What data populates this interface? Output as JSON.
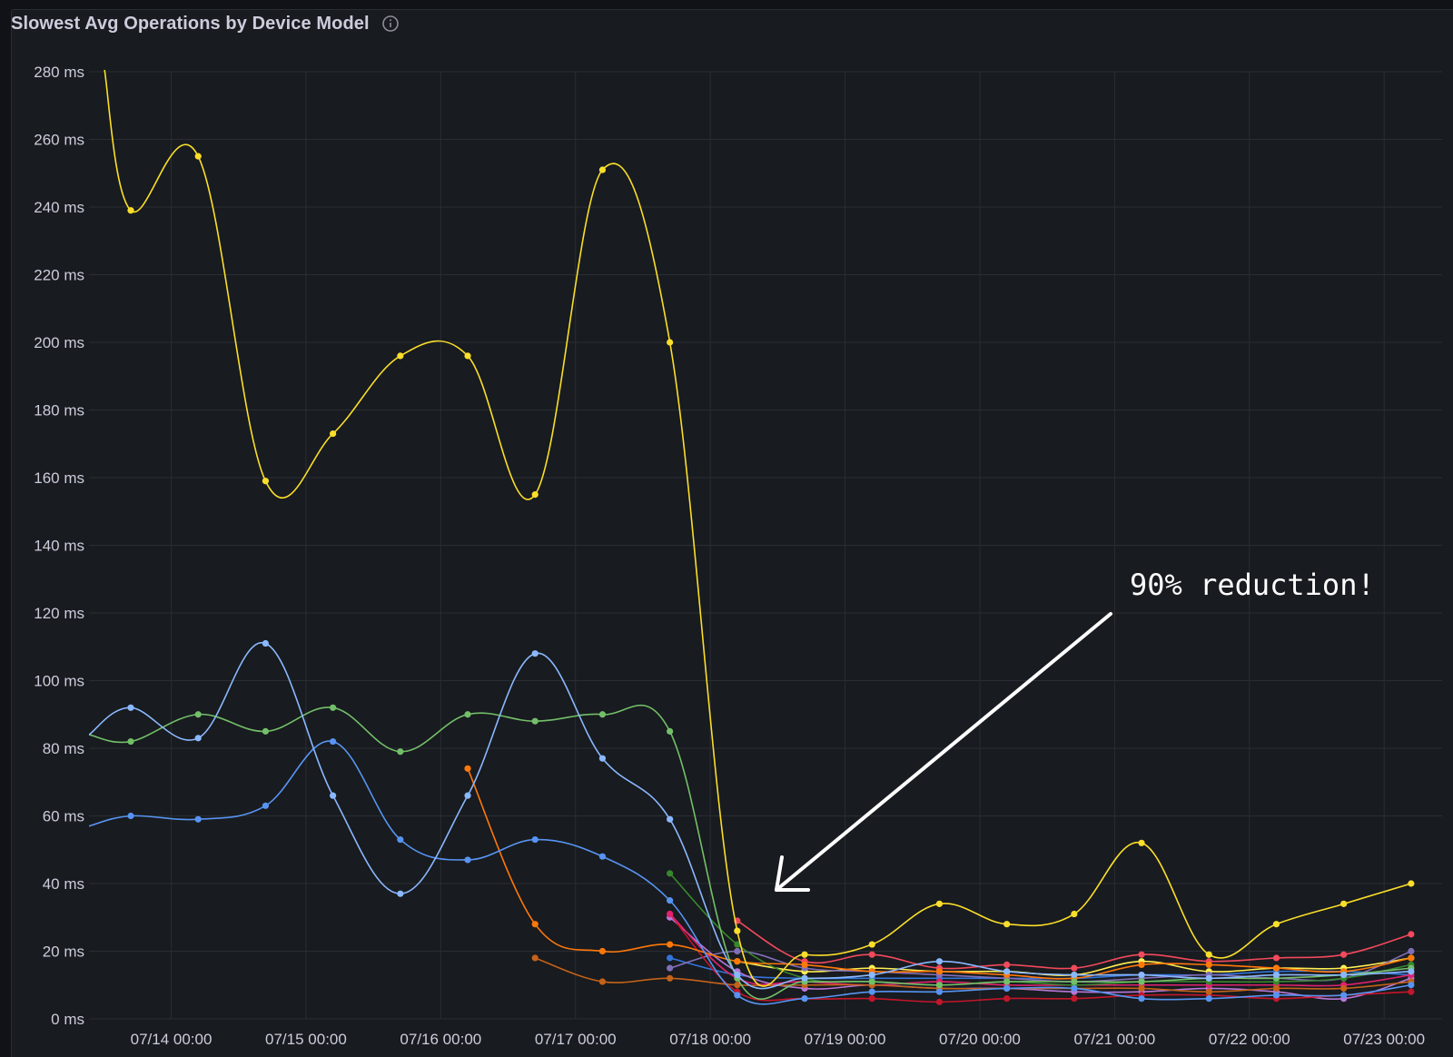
{
  "panel": {
    "title": "Slowest Avg Operations by Device Model",
    "info_icon": "info-circle-icon"
  },
  "annotation": {
    "text": "90% reduction!",
    "arrow": "arrow-pointing-down-left"
  },
  "chart_data": {
    "type": "line",
    "title": "Slowest Avg Operations by Device Model",
    "xlabel": "",
    "ylabel": "",
    "y_unit": "ms",
    "ylim": [
      0,
      280
    ],
    "y_ticks": [
      "0 ms",
      "20 ms",
      "40 ms",
      "60 ms",
      "80 ms",
      "100 ms",
      "120 ms",
      "140 ms",
      "160 ms",
      "180 ms",
      "200 ms",
      "220 ms",
      "240 ms",
      "260 ms",
      "280 ms"
    ],
    "x_tick_labels": [
      "07/14 00:00",
      "07/15 00:00",
      "07/16 00:00",
      "07/17 00:00",
      "07/18 00:00",
      "07/19 00:00",
      "07/20 00:00",
      "07/21 00:00",
      "07/22 00:00",
      "07/23 00:00"
    ],
    "x_unit": "days since 07/14 00:00",
    "xlim": [
      -0.61,
      9.43
    ],
    "grid": true,
    "legend": "none",
    "series": [
      {
        "color": "#fade2a",
        "points": [
          [
            -0.5,
            282
          ],
          [
            -0.3,
            239
          ],
          [
            0.2,
            255
          ],
          [
            0.7,
            159
          ],
          [
            1.2,
            173
          ],
          [
            1.7,
            196
          ],
          [
            2.2,
            196
          ],
          [
            2.7,
            155
          ],
          [
            3.2,
            251
          ],
          [
            3.7,
            200
          ],
          [
            4.2,
            26
          ],
          [
            4.7,
            19
          ],
          [
            5.2,
            22
          ],
          [
            5.7,
            34
          ],
          [
            6.2,
            28
          ],
          [
            6.7,
            31
          ],
          [
            7.2,
            52
          ],
          [
            7.7,
            19
          ],
          [
            8.2,
            28
          ],
          [
            8.7,
            34
          ],
          [
            9.2,
            40
          ]
        ]
      },
      {
        "color": "#8ab8ff",
        "points": [
          [
            -0.61,
            84
          ],
          [
            -0.3,
            92
          ],
          [
            0.2,
            83
          ],
          [
            0.7,
            111
          ],
          [
            1.2,
            66
          ],
          [
            1.7,
            37
          ],
          [
            2.2,
            66
          ],
          [
            2.7,
            108
          ],
          [
            3.2,
            77
          ],
          [
            3.7,
            59
          ],
          [
            4.2,
            13
          ],
          [
            4.7,
            12
          ],
          [
            5.2,
            13
          ],
          [
            5.7,
            17
          ],
          [
            6.2,
            14
          ],
          [
            6.7,
            13
          ],
          [
            7.2,
            13
          ],
          [
            7.7,
            12
          ],
          [
            8.2,
            13
          ],
          [
            8.7,
            13
          ],
          [
            9.2,
            14
          ]
        ]
      },
      {
        "color": "#73bf69",
        "points": [
          [
            -0.61,
            84
          ],
          [
            -0.3,
            82
          ],
          [
            0.2,
            90
          ],
          [
            0.7,
            85
          ],
          [
            1.2,
            92
          ],
          [
            1.7,
            79
          ],
          [
            2.2,
            90
          ],
          [
            2.7,
            88
          ],
          [
            3.2,
            90
          ],
          [
            3.7,
            85
          ],
          [
            4.2,
            12
          ],
          [
            4.7,
            11
          ],
          [
            5.2,
            11
          ],
          [
            5.7,
            10
          ],
          [
            6.2,
            11
          ],
          [
            6.7,
            11
          ],
          [
            7.2,
            11
          ],
          [
            7.7,
            12
          ],
          [
            8.2,
            12
          ],
          [
            8.7,
            13
          ],
          [
            9.2,
            15
          ]
        ]
      },
      {
        "color": "#5794f2",
        "points": [
          [
            -0.61,
            57
          ],
          [
            -0.3,
            60
          ],
          [
            0.2,
            59
          ],
          [
            0.7,
            63
          ],
          [
            1.2,
            82
          ],
          [
            1.7,
            53
          ],
          [
            2.2,
            47
          ],
          [
            2.7,
            53
          ],
          [
            3.2,
            48
          ],
          [
            3.7,
            35
          ],
          [
            4.2,
            7
          ],
          [
            4.7,
            6
          ],
          [
            5.2,
            8
          ],
          [
            5.7,
            8
          ],
          [
            6.2,
            9
          ],
          [
            6.7,
            9
          ],
          [
            7.2,
            6
          ],
          [
            7.7,
            6
          ],
          [
            8.2,
            7
          ],
          [
            8.7,
            7
          ],
          [
            9.2,
            10
          ]
        ]
      },
      {
        "color": "#ff780a",
        "points": [
          [
            2.2,
            74
          ],
          [
            2.7,
            28
          ],
          [
            3.2,
            20
          ],
          [
            3.7,
            22
          ],
          [
            4.2,
            17
          ],
          [
            4.7,
            16
          ],
          [
            5.2,
            14
          ],
          [
            5.7,
            14
          ],
          [
            6.2,
            13
          ],
          [
            6.7,
            12
          ],
          [
            7.2,
            16
          ],
          [
            7.7,
            16
          ],
          [
            8.2,
            15
          ],
          [
            8.7,
            14
          ],
          [
            9.2,
            18
          ]
        ]
      },
      {
        "color": "#c4621a",
        "points": [
          [
            2.7,
            18
          ],
          [
            3.2,
            11
          ],
          [
            3.7,
            12
          ],
          [
            4.2,
            10
          ],
          [
            4.7,
            10
          ],
          [
            5.2,
            10
          ],
          [
            5.7,
            9
          ],
          [
            6.2,
            9
          ],
          [
            6.7,
            9
          ],
          [
            7.2,
            9
          ],
          [
            7.7,
            8
          ],
          [
            8.2,
            9
          ],
          [
            8.7,
            9
          ],
          [
            9.2,
            11
          ]
        ]
      },
      {
        "color": "#f2495c",
        "points": [
          [
            4.2,
            29
          ],
          [
            4.7,
            17
          ],
          [
            5.2,
            19
          ],
          [
            5.7,
            15
          ],
          [
            6.2,
            16
          ],
          [
            6.7,
            15
          ],
          [
            7.2,
            19
          ],
          [
            7.7,
            17
          ],
          [
            8.2,
            18
          ],
          [
            8.7,
            19
          ],
          [
            9.2,
            25
          ]
        ]
      },
      {
        "color": "#37872d",
        "points": [
          [
            3.7,
            43
          ],
          [
            4.2,
            22
          ],
          [
            4.7,
            12
          ],
          [
            5.2,
            11
          ],
          [
            5.7,
            10
          ],
          [
            6.2,
            11
          ],
          [
            6.7,
            10
          ],
          [
            7.2,
            11
          ],
          [
            7.7,
            11
          ],
          [
            8.2,
            11
          ],
          [
            8.7,
            12
          ],
          [
            9.2,
            16
          ]
        ]
      },
      {
        "color": "#e0226e",
        "points": [
          [
            3.7,
            31
          ],
          [
            4.2,
            12
          ],
          [
            4.7,
            11
          ],
          [
            5.2,
            10
          ],
          [
            5.7,
            11
          ],
          [
            6.2,
            10
          ],
          [
            6.7,
            10
          ],
          [
            7.2,
            10
          ],
          [
            7.7,
            10
          ],
          [
            8.2,
            10
          ],
          [
            8.7,
            10
          ],
          [
            9.2,
            13
          ]
        ]
      },
      {
        "color": "#c4162a",
        "points": [
          [
            3.7,
            31
          ],
          [
            4.2,
            8
          ],
          [
            4.7,
            6
          ],
          [
            5.2,
            6
          ],
          [
            5.7,
            5
          ],
          [
            6.2,
            6
          ],
          [
            6.7,
            6
          ],
          [
            7.2,
            7
          ],
          [
            7.7,
            7
          ],
          [
            8.2,
            6
          ],
          [
            8.7,
            7
          ],
          [
            9.2,
            8
          ]
        ]
      },
      {
        "color": "#b877d9",
        "points": [
          [
            3.7,
            30
          ],
          [
            4.2,
            14
          ],
          [
            4.7,
            9
          ],
          [
            5.2,
            10
          ],
          [
            5.7,
            9
          ],
          [
            6.2,
            9
          ],
          [
            6.7,
            8
          ],
          [
            7.2,
            8
          ],
          [
            7.7,
            9
          ],
          [
            8.2,
            8
          ],
          [
            8.7,
            6
          ],
          [
            9.2,
            12
          ]
        ]
      },
      {
        "color": "#806eb7",
        "points": [
          [
            3.7,
            15
          ],
          [
            4.2,
            20
          ],
          [
            4.7,
            15
          ],
          [
            5.2,
            14
          ],
          [
            5.7,
            13
          ],
          [
            6.2,
            12
          ],
          [
            6.7,
            11
          ],
          [
            7.2,
            12
          ],
          [
            7.7,
            13
          ],
          [
            8.2,
            12
          ],
          [
            8.7,
            12
          ],
          [
            9.2,
            20
          ]
        ]
      },
      {
        "color": "#3274d9",
        "points": [
          [
            3.7,
            18
          ],
          [
            4.2,
            13
          ],
          [
            4.7,
            12
          ],
          [
            5.2,
            12
          ],
          [
            5.7,
            12
          ],
          [
            6.2,
            12
          ],
          [
            6.7,
            12
          ],
          [
            7.2,
            13
          ],
          [
            7.7,
            13
          ],
          [
            8.2,
            14
          ],
          [
            8.7,
            14
          ],
          [
            9.2,
            13
          ]
        ]
      },
      {
        "color": "#ffee52",
        "points": [
          [
            4.2,
            17
          ],
          [
            4.7,
            14
          ],
          [
            5.2,
            15
          ],
          [
            5.7,
            14
          ],
          [
            6.2,
            14
          ],
          [
            6.7,
            13
          ],
          [
            7.2,
            17
          ],
          [
            7.7,
            14
          ],
          [
            8.2,
            15
          ],
          [
            8.7,
            15
          ],
          [
            9.2,
            18
          ]
        ]
      }
    ]
  }
}
